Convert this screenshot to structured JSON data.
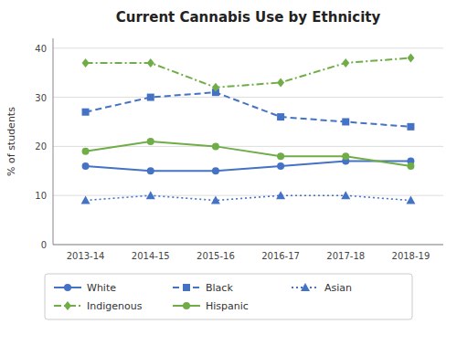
{
  "chart_data": {
    "type": "line",
    "title": "Current Cannabis Use by Ethnicity",
    "ylabel": "% of students",
    "categories": [
      "2013-14",
      "2014-15",
      "2015-16",
      "2016-17",
      "2017-18",
      "2018-19"
    ],
    "series": [
      {
        "name": "White",
        "color": "#4472c4",
        "line_style": "solid",
        "marker": "circle",
        "values": [
          16,
          15,
          15,
          16,
          17,
          17
        ]
      },
      {
        "name": "Black",
        "color": "#4472c4",
        "line_style": "dashed",
        "marker": "square",
        "values": [
          27,
          30,
          31,
          26,
          25,
          24
        ]
      },
      {
        "name": "Asian",
        "color": "#4472c4",
        "line_style": "dotted",
        "marker": "triangle",
        "values": [
          9,
          10,
          9,
          10,
          10,
          9
        ]
      },
      {
        "name": "Indigenous",
        "color": "#70ad47",
        "line_style": "dashdot",
        "marker": "diamond",
        "values": [
          37,
          37,
          32,
          33,
          37,
          38
        ]
      },
      {
        "name": "Hispanic",
        "color": "#70ad47",
        "line_style": "solid",
        "marker": "circle",
        "values": [
          19,
          21,
          20,
          18,
          18,
          16
        ]
      }
    ],
    "ylim": [
      0,
      42
    ],
    "yticks": [
      0,
      10,
      20,
      30,
      40
    ],
    "grid": true,
    "legend": "bottom"
  }
}
